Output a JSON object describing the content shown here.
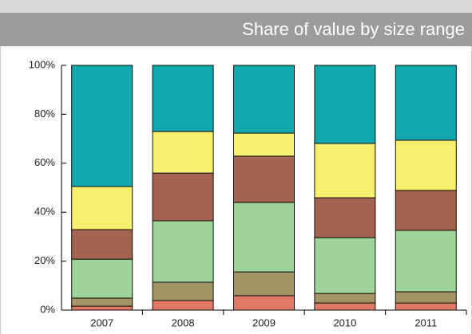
{
  "chart_data": {
    "type": "stacked_bar",
    "title": "Share of value by size range",
    "categories": [
      "2007",
      "2008",
      "2009",
      "2010",
      "2011"
    ],
    "series": [
      {
        "color": "#e07a66",
        "values": [
          1.6,
          3.9,
          5.9,
          2.9,
          2.9
        ]
      },
      {
        "color": "#a39466",
        "values": [
          3.3,
          7.5,
          9.7,
          3.9,
          4.6
        ]
      },
      {
        "color": "#9ed49a",
        "values": [
          15.9,
          25.1,
          28.4,
          22.8,
          25.1
        ]
      },
      {
        "color": "#a36350",
        "values": [
          12.1,
          19.5,
          18.9,
          16.3,
          16.3
        ]
      },
      {
        "color": "#f7ef6e",
        "values": [
          17.6,
          17,
          9.4,
          22.2,
          20.5
        ]
      },
      {
        "color": "#12a7ad",
        "values": [
          49.5,
          27,
          27.7,
          31.9,
          30.6
        ]
      }
    ],
    "ylim": [
      0,
      100
    ],
    "yticks": [
      {
        "value": 0,
        "label": "0%"
      },
      {
        "value": 20,
        "label": "20%"
      },
      {
        "value": 40,
        "label": "40%"
      },
      {
        "value": 60,
        "label": "60%"
      },
      {
        "value": 80,
        "label": "80%"
      },
      {
        "value": 100,
        "label": "100%"
      }
    ]
  }
}
